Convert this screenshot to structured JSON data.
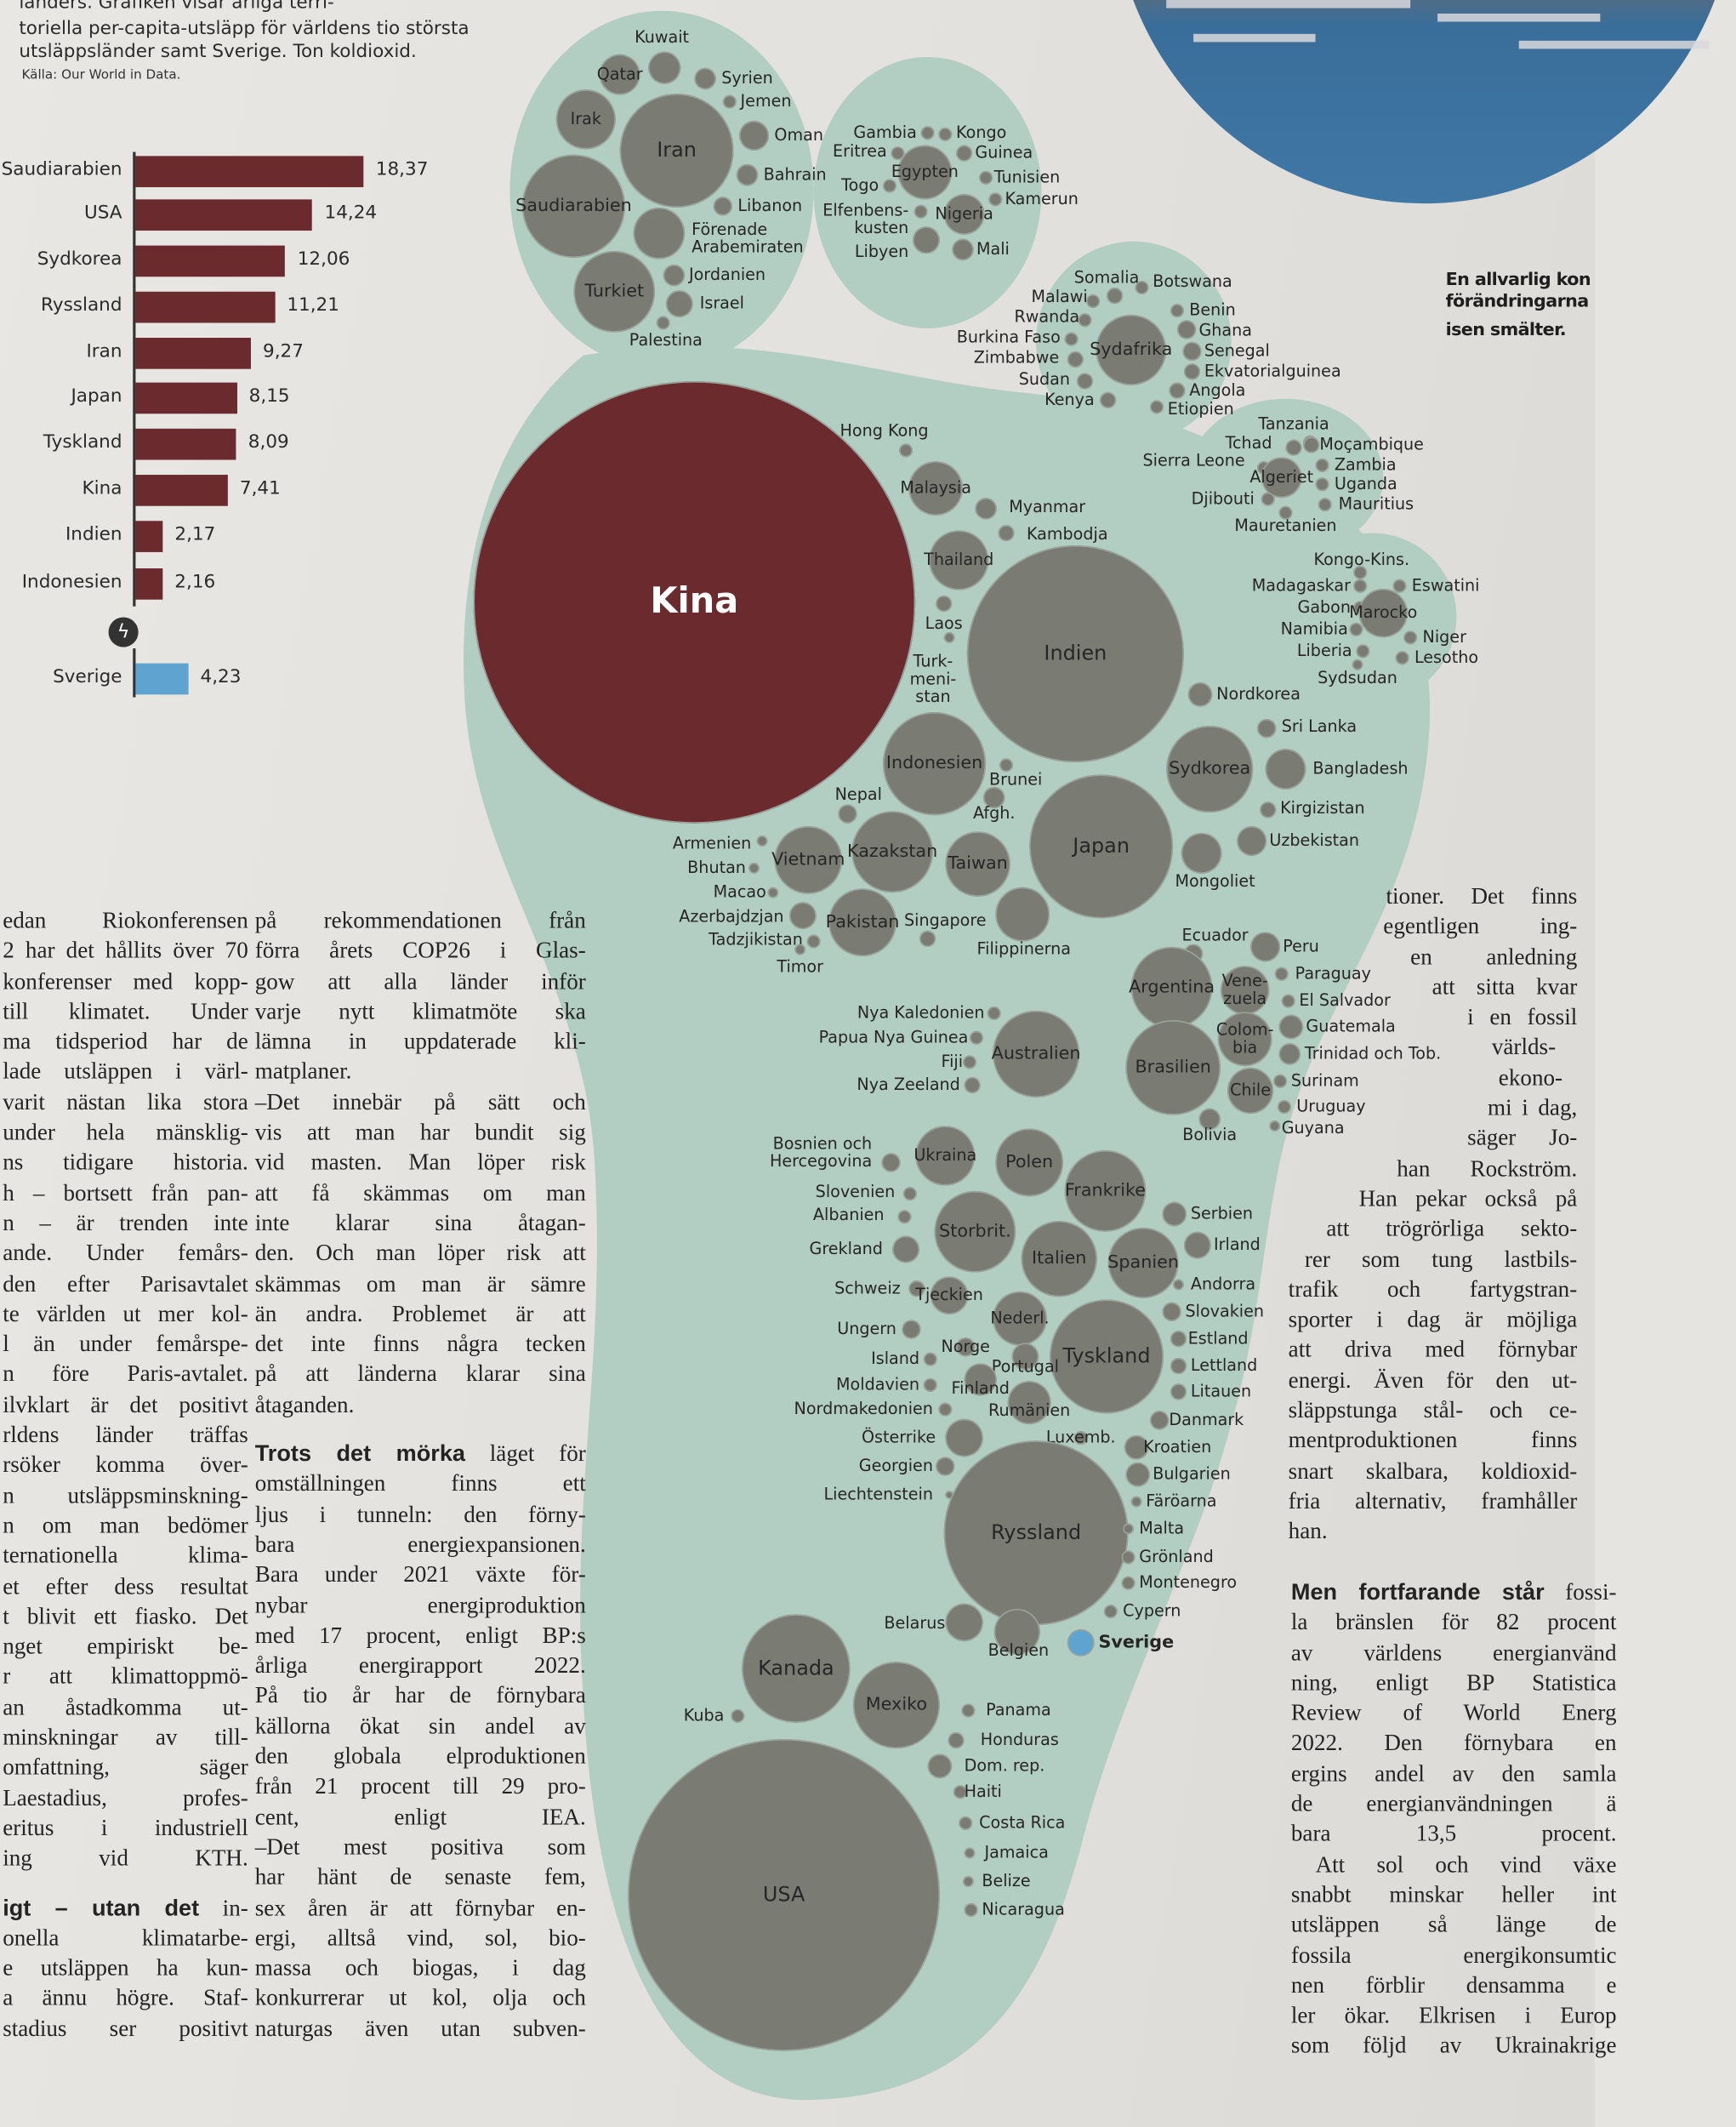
{
  "intro": {
    "lines": [
      "länders. Grafiken visar årliga terri-",
      "toriella per-capita-utsläpp för världens tio största",
      "utsläppsländer samt Sverige. Ton koldioxid."
    ],
    "source": "Källa: Our World in Data."
  },
  "colors": {
    "bar": "#6b2a2e",
    "sweden": "#5fa3d0",
    "foot": "#b2cdc2",
    "bubble": "#7a7c74",
    "china": "#6b2a2e"
  },
  "chart_data": {
    "type": "bar",
    "orientation": "horizontal",
    "title": "Årliga territoriella per-capita-utsläpp, ton koldioxid",
    "categories": [
      "Saudiarabien",
      "USA",
      "Sydkorea",
      "Ryssland",
      "Iran",
      "Japan",
      "Tyskland",
      "Kina",
      "Indien",
      "Indonesien",
      "Sverige"
    ],
    "values": [
      18.37,
      14.24,
      12.06,
      11.21,
      9.27,
      8.15,
      8.09,
      7.41,
      2.17,
      2.16,
      4.23
    ],
    "value_labels": [
      "18,37",
      "14,24",
      "12,06",
      "11,21",
      "9,27",
      "8,15",
      "8,09",
      "7,41",
      "2,17",
      "2,16",
      "4,23"
    ],
    "highlight": "Sverige",
    "axis_break_before": "Sverige",
    "xlabel": "",
    "ylabel": "",
    "xlim": [
      0,
      20
    ],
    "grid": false
  },
  "footprint": {
    "countries": [
      "Kuwait",
      "Qatar",
      "Syrien",
      "Jemen",
      "Irak",
      "Iran",
      "Oman",
      "Bahrain",
      "Saudiarabien",
      "Libanon",
      "Förenade\nArabemiraten",
      "Jordanien",
      "Turkiet",
      "Israel",
      "Palestina",
      "Gambia",
      "Kongo",
      "Eritrea",
      "Guinea",
      "Egypten",
      "Tunisien",
      "Togo",
      "Kamerun",
      "Elfenbens-\nkusten",
      "Nigeria",
      "Libyen",
      "Mali",
      "Somalia",
      "Botswana",
      "Malawi",
      "Benin",
      "Rwanda",
      "Ghana",
      "Burkina Faso",
      "Sydafrika",
      "Senegal",
      "Zimbabwe",
      "Ekvatorialguinea",
      "Sudan",
      "Angola",
      "Kenya",
      "Etiopien",
      "Tanzania",
      "Hong Kong",
      "Tchad",
      "Moçambique",
      "Sierra Leone",
      "Zambia",
      "Algeriet",
      "Uganda",
      "Malaysia",
      "Djibouti",
      "Mauritius",
      "Myanmar",
      "Mauretanien",
      "Kambodja",
      "Thailand",
      "Kongo-Kins.",
      "Kina",
      "Madagaskar",
      "Eswatini",
      "Gabon",
      "Marocko",
      "Laos",
      "Namibia",
      "Niger",
      "Liberia",
      "Indien",
      "Lesotho",
      "Turk-\nmeni-\nstan",
      "Sydsudan",
      "Nordkorea",
      "Sri Lanka",
      "Indonesien",
      "Sydkorea",
      "Bangladesh",
      "Brunei",
      "Nepal",
      "Afgh.",
      "Kirgizistan",
      "Armenien",
      "Japan",
      "Uzbekistan",
      "Kazakstan",
      "Bhutan",
      "Vietnam",
      "Taiwan",
      "Mongoliet",
      "Macao",
      "Azerbajdzjan",
      "Pakistan",
      "Singapore",
      "Filippinerna",
      "Tadzjikistan",
      "Timor",
      "Ecuador",
      "Peru",
      "Paraguay",
      "Argentina",
      "Vene-\nzuela",
      "El Salvador",
      "Nya Kaledonien",
      "Guatemala",
      "Papua Nya Guinea",
      "Colom-\nbia",
      "Australien",
      "Brasilien",
      "Trinidad och Tob.",
      "Fiji",
      "Surinam",
      "Chile",
      "Nya Zeeland",
      "Uruguay",
      "Bolivia",
      "Guyana",
      "Bosnien och\nHercegovina",
      "Ukraina",
      "Polen",
      "Slovenien",
      "Frankrike",
      "Albanien",
      "Serbien",
      "Storbrit.",
      "Grekland",
      "Irland",
      "Italien",
      "Spanien",
      "Schweiz",
      "Andorra",
      "Tjeckien",
      "Slovakien",
      "Nederl.",
      "Ungern",
      "Tyskland",
      "Estland",
      "Norge",
      "Island",
      "Portugal",
      "Lettland",
      "Moldavien",
      "Finland",
      "Litauen",
      "Nordmakedonien",
      "Rumänien",
      "Danmark",
      "Österrike",
      "Luxemb.",
      "Kroatien",
      "Georgien",
      "Bulgarien",
      "Liechtenstein",
      "Färöarna",
      "Ryssland",
      "Malta",
      "Grönland",
      "Montenegro",
      "Cypern",
      "Belarus",
      "Sverige",
      "Belgien",
      "Kanada",
      "Mexiko",
      "Panama",
      "Kuba",
      "Honduras",
      "Dom. rep.",
      "Haiti",
      "Costa Rica",
      "Jamaica",
      "USA",
      "Belize",
      "Nicaragua"
    ]
  },
  "photo_caption": {
    "lines": [
      "En allvarlig kon",
      "förändringarna",
      "isen smälter."
    ]
  },
  "article": {
    "col1": [
      "edan Riokonferensen",
      "2 har det hållits över 70",
      "konferenser med kopp-",
      "till klimatet. Under",
      "ma tidsperiod har de",
      "lade utsläppen i värl-",
      "varit nästan lika stora",
      "under hela mänsklig-",
      "ns tidigare historia.",
      "h – bortsett från pan-",
      "n – är trenden inte",
      "ande. Under femårs-",
      "den efter Parisavtalet",
      "te världen ut mer kol-",
      "l än under femårspe-",
      "n före Paris-avtalet.",
      "ilvklart är det positivt",
      "rldens länder träffas",
      "rsöker komma över-",
      "n utsläppsminskning-",
      "n om man bedömer",
      "ternationella klima-",
      "et efter dess resultat",
      "t blivit ett fiasko. Det",
      "nget empiriskt be-",
      "r att klimattoppmö-",
      "an åstadkomma ut-",
      "minskningar av till-",
      "omfattning, säger",
      "Laestadius, profes-",
      "eritus i industriell",
      "ing vid KTH.",
      "",
      {
        "bold": "igt – utan det",
        "text": " in-"
      },
      "onella klimatarbe-",
      "e utsläppen ha kun-",
      "a ännu högre. Staf-",
      "stadius ser positivt"
    ],
    "col2": [
      "på rekommendationen från",
      "förra årets COP26 i Glas-",
      "gow att alla länder inför",
      "varje nytt klimatmöte ska",
      "lämna in uppdaterade kli-",
      "matplaner.",
      "–Det innebär på sätt och",
      "vis att man har bundit sig",
      "vid masten. Man löper risk",
      "att få skämmas om man",
      "inte klarar sina åtagan-",
      "den. Och man löper risk att",
      "skämmas om man är sämre",
      "än andra. Problemet är att",
      "det inte finns några tecken",
      "på att länderna klarar sina",
      "åtaganden.",
      "",
      {
        "bold": "Trots det mörka",
        "text": " läget för"
      },
      "omställningen finns ett",
      "ljus i tunneln: den förny-",
      "bara energiexpansionen.",
      "Bara under 2021 växte för-",
      "nybar energiproduktion",
      "med 17 procent, enligt BP:s",
      "årliga energirapport 2022.",
      "På tio år har de förnybara",
      "källorna ökat sin andel av",
      "den globala elproduktionen",
      "från 21 procent till 29 pro-",
      "cent, enligt IEA.",
      "–Det mest positiva som",
      "har hänt de senaste fem,",
      "sex åren är att förnybar en-",
      "ergi, alltså vind, sol, bio-",
      "massa och biogas, i dag",
      "konkurrerar ut kol, olja och",
      "naturgas även utan subven-"
    ],
    "col3a": [
      "tioner. Det finns",
      "egentligen ing-",
      "en anledning",
      "att sitta kvar",
      "i en fossil",
      "världs-",
      "ekono-",
      "mi i dag,",
      "säger Jo-",
      "han Rockström.",
      "Han pekar också på",
      "att trögrörliga sekto-",
      "rer som tung lastbils-",
      "trafik och fartygstran-",
      "sporter i dag är möjliga",
      "att driva med förnybar",
      "energi. Även för den ut-",
      "släppstunga stål- och ce-",
      "mentproduktionen finns",
      "snart skalbara, koldioxid-",
      "fria alternativ, framhåller",
      "han."
    ],
    "col3b": [
      {
        "bold": "Men fortfarande står",
        "text": " fossi-"
      },
      "la bränslen för 82 procent",
      "av världens energianvänd",
      "ning, enligt BP Statistica",
      "Review of World Energ",
      "2022. Den förnybara en",
      "ergins andel av den samla",
      "de energianvändningen ä",
      "bara 13,5 procent.",
      "Att sol och vind växe",
      "snabbt minskar heller int",
      "utsläppen så länge de",
      "fossila energikonsumtic",
      "nen förblir densamma e",
      "ler ökar. Elkrisen i Europ",
      "som följd av Ukrainakrige"
    ]
  }
}
